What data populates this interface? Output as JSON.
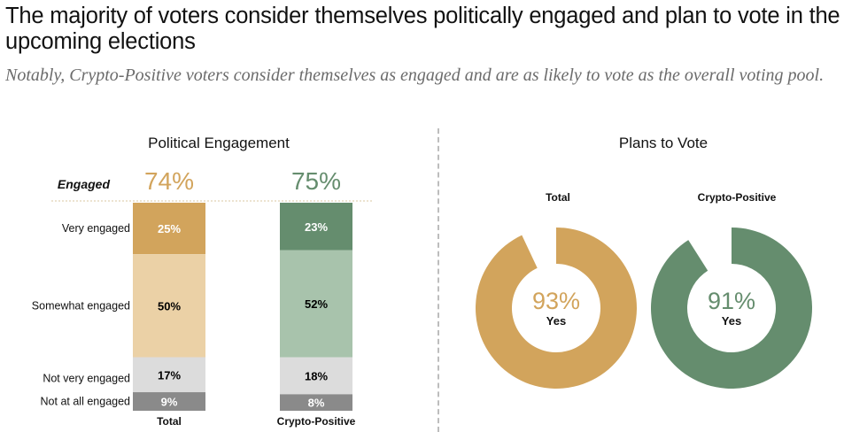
{
  "title": "The majority of voters consider themselves politically engaged and plan to vote in the upcoming elections",
  "subtitle": "Notably, Crypto-Positive voters consider themselves as engaged and are as likely to vote as the overall voting pool.",
  "colors": {
    "gold": "#d2a45c",
    "gold_light": "#ebd1a6",
    "green": "#658d6e",
    "green_light": "#a8c3ac",
    "grey_light": "#dcdcdc",
    "grey_dark": "#8a8a8a"
  },
  "chart_data": [
    {
      "type": "bar",
      "stacked": true,
      "title": "Political Engagement",
      "categories": [
        "Total",
        "Crypto-Positive"
      ],
      "segment_labels": [
        "Very engaged",
        "Somewhat engaged",
        "Not very engaged",
        "Not at all engaged"
      ],
      "series": [
        {
          "name": "Very engaged",
          "values": [
            25,
            23
          ],
          "labels": [
            "25%",
            "23%"
          ]
        },
        {
          "name": "Somewhat engaged",
          "values": [
            50,
            52
          ],
          "labels": [
            "50%",
            "52%"
          ]
        },
        {
          "name": "Not very engaged",
          "values": [
            17,
            18
          ],
          "labels": [
            "17%",
            "18%"
          ]
        },
        {
          "name": "Not at all engaged",
          "values": [
            9,
            8
          ],
          "labels": [
            "9%",
            "8%"
          ]
        }
      ],
      "engaged_label": "Engaged",
      "engaged_totals": [
        "74%",
        "75%"
      ]
    },
    {
      "type": "pie",
      "donut": true,
      "title": "Plans to Vote",
      "charts": [
        {
          "name": "Total",
          "value": 93,
          "label": "93%",
          "sublabel": "Yes"
        },
        {
          "name": "Crypto-Positive",
          "value": 91,
          "label": "91%",
          "sublabel": "Yes"
        }
      ]
    }
  ]
}
